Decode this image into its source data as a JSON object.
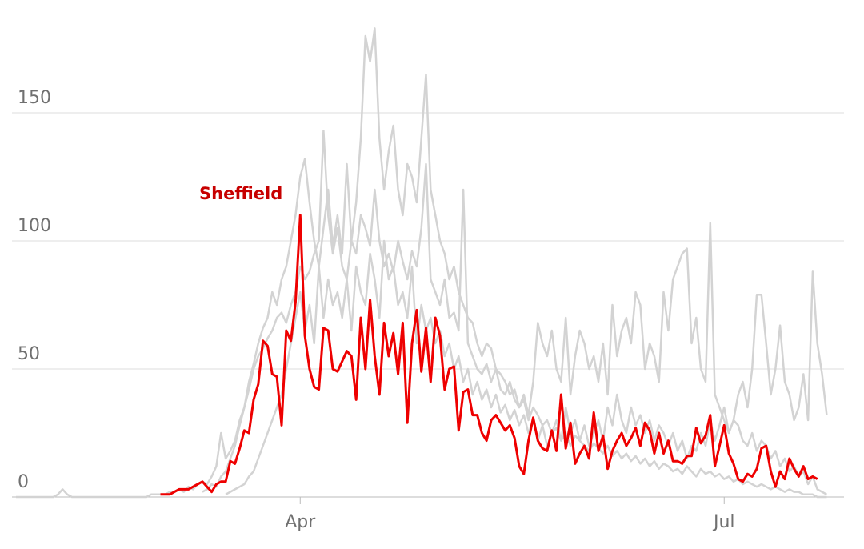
{
  "chart_data": {
    "type": "line",
    "categories": [
      null,
      null,
      null,
      null,
      null,
      null,
      null,
      null,
      null,
      null,
      null,
      null,
      null,
      null,
      null,
      null,
      null,
      null,
      null,
      null,
      null,
      null,
      null,
      null,
      null,
      null,
      null,
      null,
      null,
      null,
      null,
      null,
      null,
      null,
      null,
      null,
      null,
      null,
      null,
      null,
      null,
      null,
      null,
      null,
      null,
      null,
      null,
      null,
      null,
      null,
      null,
      null,
      null,
      null,
      null,
      null,
      null,
      null,
      null,
      null,
      null,
      "Apr",
      null,
      null,
      null,
      null,
      null,
      null,
      null,
      null,
      null,
      null,
      null,
      null,
      null,
      null,
      null,
      null,
      null,
      null,
      null,
      null,
      null,
      null,
      null,
      null,
      null,
      null,
      null,
      null,
      null,
      null,
      null,
      null,
      null,
      null,
      null,
      null,
      null,
      null,
      null,
      null,
      null,
      null,
      null,
      null,
      null,
      null,
      null,
      null,
      null,
      null,
      null,
      null,
      null,
      null,
      null,
      null,
      null,
      null,
      null,
      null,
      null,
      null,
      null,
      null,
      null,
      null,
      null,
      null,
      null,
      null,
      null,
      null,
      null,
      null,
      null,
      null,
      null,
      null,
      null,
      null,
      null,
      null,
      null,
      null,
      null,
      null,
      null,
      null,
      null,
      null,
      "Jul",
      null,
      null,
      null,
      null,
      null,
      null,
      null,
      null,
      null,
      null,
      null,
      null,
      null,
      null,
      null,
      null,
      null,
      null,
      null,
      null,
      null,
      null
    ],
    "series": [
      {
        "color": "#d3d3d3",
        "values": [
          null,
          null,
          null,
          null,
          null,
          null,
          null,
          null,
          null,
          null,
          null,
          null,
          null,
          null,
          null,
          null,
          null,
          null,
          null,
          null,
          null,
          null,
          null,
          null,
          null,
          null,
          null,
          null,
          null,
          null,
          null,
          null,
          null,
          null,
          null,
          null,
          null,
          null,
          null,
          null,
          2,
          3,
          5,
          4,
          8,
          10,
          15,
          20,
          28,
          35,
          45,
          52,
          60,
          66,
          70,
          80,
          75,
          85,
          90,
          100,
          110,
          125,
          132,
          115,
          100,
          90,
          105,
          120,
          98,
          110,
          95,
          130,
          100,
          115,
          140,
          180,
          170,
          183,
          140,
          120,
          135,
          145,
          120,
          110,
          130,
          125,
          115,
          140,
          165,
          120,
          110,
          100,
          95,
          85,
          90,
          80,
          75,
          70,
          68,
          60,
          55,
          60,
          58,
          50,
          48,
          45,
          40,
          42,
          35,
          38,
          30,
          35,
          32,
          28,
          30,
          25,
          27,
          22,
          25,
          20,
          24,
          22,
          20,
          18,
          21,
          19,
          17,
          20,
          16,
          18,
          15,
          17,
          14,
          16,
          13,
          15,
          12,
          14,
          11,
          13,
          12,
          10,
          11,
          9,
          12,
          10,
          8,
          11,
          9,
          10,
          8,
          9,
          7,
          8,
          6,
          7,
          5,
          6,
          5,
          4,
          5,
          4,
          3,
          4,
          3,
          2,
          3,
          2,
          2,
          1,
          1,
          1,
          0,
          0,
          0
        ]
      },
      {
        "color": "#d3d3d3",
        "values": [
          0,
          0,
          0,
          0,
          0,
          0,
          0,
          0,
          0,
          1,
          3,
          1,
          0,
          0,
          0,
          0,
          0,
          0,
          0,
          0,
          0,
          0,
          0,
          0,
          0,
          0,
          0,
          0,
          0,
          1,
          1,
          1,
          1,
          2,
          2,
          3,
          2,
          4,
          3,
          5,
          6,
          5,
          8,
          12,
          25,
          15,
          18,
          22,
          30,
          35,
          42,
          50,
          55,
          58,
          62,
          65,
          70,
          72,
          68,
          75,
          80,
          90,
          85,
          88,
          95,
          100,
          143,
          110,
          95,
          105,
          90,
          85,
          100,
          95,
          110,
          105,
          98,
          120,
          100,
          90,
          95,
          88,
          100,
          92,
          85,
          96,
          90,
          105,
          130,
          85,
          80,
          75,
          85,
          70,
          72,
          65,
          120,
          60,
          55,
          50,
          48,
          52,
          45,
          50,
          42,
          40,
          45,
          38,
          35,
          40,
          32,
          45,
          68,
          60,
          55,
          65,
          50,
          45,
          70,
          40,
          55,
          65,
          60,
          50,
          55,
          45,
          60,
          40,
          75,
          55,
          65,
          70,
          60,
          80,
          75,
          50,
          60,
          55,
          45,
          80,
          65,
          85,
          90,
          95,
          97,
          60,
          70,
          50,
          45,
          107,
          40,
          35,
          30,
          25,
          30,
          28,
          22,
          20,
          25,
          18,
          22,
          20,
          15,
          18,
          12,
          15,
          10,
          12,
          8,
          10,
          5,
          8,
          3,
          2,
          1
        ]
      },
      {
        "color": "#d3d3d3",
        "values": [
          null,
          null,
          null,
          null,
          null,
          null,
          null,
          null,
          null,
          null,
          null,
          null,
          null,
          null,
          null,
          null,
          null,
          null,
          null,
          null,
          null,
          null,
          null,
          null,
          null,
          null,
          null,
          null,
          null,
          null,
          null,
          null,
          null,
          null,
          null,
          null,
          null,
          null,
          null,
          null,
          null,
          null,
          null,
          null,
          null,
          1,
          2,
          3,
          4,
          5,
          8,
          10,
          15,
          20,
          25,
          30,
          35,
          40,
          50,
          60,
          70,
          80,
          65,
          75,
          60,
          90,
          70,
          85,
          75,
          80,
          70,
          85,
          65,
          90,
          80,
          75,
          95,
          85,
          70,
          100,
          85,
          90,
          75,
          80,
          70,
          90,
          60,
          75,
          65,
          70,
          60,
          65,
          55,
          60,
          50,
          55,
          45,
          50,
          40,
          45,
          38,
          42,
          35,
          40,
          33,
          36,
          30,
          34,
          28,
          32,
          25,
          30,
          22,
          28,
          20,
          25,
          30,
          22,
          35,
          25,
          30,
          22,
          28,
          20,
          25,
          30,
          22,
          35,
          28,
          40,
          30,
          25,
          35,
          28,
          32,
          25,
          30,
          22,
          28,
          25,
          20,
          25,
          18,
          22,
          15,
          20,
          18,
          25,
          20,
          30,
          22,
          28,
          35,
          25,
          30,
          40,
          45,
          35,
          50,
          79,
          79,
          60,
          40,
          50,
          67,
          45,
          40,
          30,
          35,
          48,
          30,
          88,
          60,
          48,
          32
        ]
      },
      {
        "name": "Sheffield",
        "color": "#ee0000",
        "values": [
          null,
          null,
          null,
          null,
          null,
          null,
          null,
          null,
          null,
          null,
          null,
          null,
          null,
          null,
          null,
          null,
          null,
          null,
          null,
          null,
          null,
          null,
          null,
          null,
          null,
          null,
          null,
          null,
          null,
          null,
          null,
          1,
          1,
          1,
          2,
          3,
          3,
          3,
          4,
          5,
          6,
          4,
          2,
          5,
          6,
          6,
          14,
          13,
          19,
          26,
          25,
          38,
          44,
          61,
          59,
          48,
          47,
          28,
          65,
          61,
          76,
          110,
          63,
          50,
          43,
          42,
          66,
          65,
          50,
          49,
          53,
          57,
          55,
          38,
          70,
          50,
          77,
          55,
          40,
          68,
          55,
          64,
          48,
          68,
          29,
          60,
          73,
          49,
          66,
          45,
          70,
          63,
          42,
          50,
          51,
          26,
          41,
          42,
          32,
          32,
          25,
          22,
          30,
          32,
          29,
          26,
          28,
          23,
          12,
          9,
          22,
          31,
          22,
          19,
          18,
          26,
          18,
          40,
          19,
          29,
          13,
          17,
          20,
          15,
          33,
          18,
          24,
          11,
          18,
          22,
          25,
          20,
          23,
          27,
          20,
          29,
          26,
          17,
          25,
          17,
          22,
          14,
          14,
          13,
          16,
          16,
          27,
          21,
          24,
          32,
          12,
          20,
          28,
          17,
          13,
          7,
          6,
          9,
          8,
          11,
          19,
          20,
          10,
          4,
          10,
          7,
          15,
          11,
          8,
          12,
          7,
          8,
          7,
          null,
          null
        ]
      }
    ],
    "ylim": [
      0,
      190
    ],
    "yticks": [
      0,
      50,
      100,
      150
    ],
    "grid": true
  }
}
